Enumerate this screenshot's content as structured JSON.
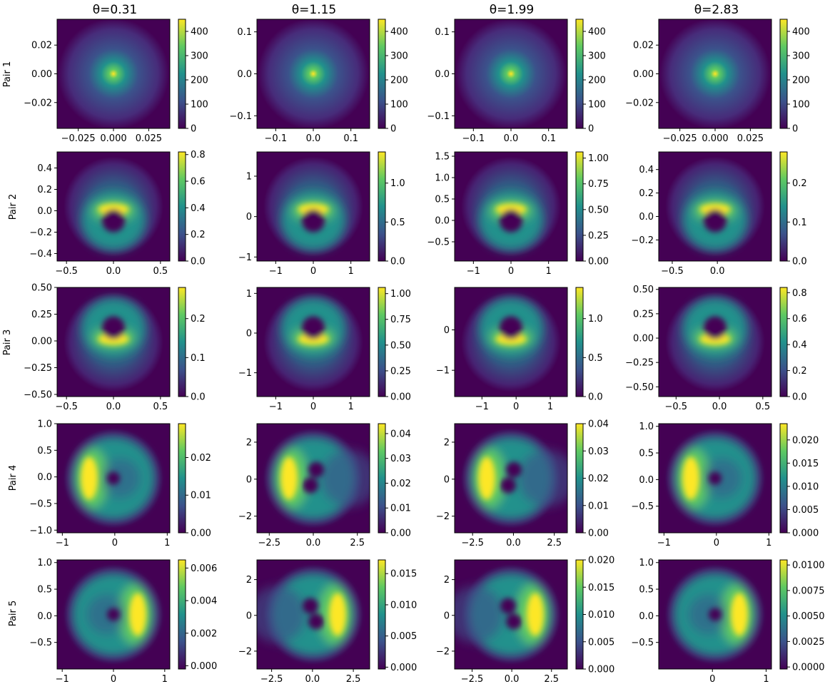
{
  "chart_data": {
    "type": "heatmap",
    "colormap": "viridis",
    "colormap_stops": [
      "#440154",
      "#3b528b",
      "#21918c",
      "#5ec962",
      "#fde725"
    ],
    "column_titles": [
      "θ=0.31",
      "θ=1.15",
      "θ=1.99",
      "θ=2.83"
    ],
    "row_labels": [
      "Pair 1",
      "Pair 2",
      "Pair 3",
      "Pair 4",
      "Pair 5"
    ],
    "panels": [
      [
        {
          "pattern": "peak",
          "xlim": [
            -0.04,
            0.04
          ],
          "ylim": [
            -0.038,
            0.038
          ],
          "xticks": [
            -0.025,
            0.0,
            0.025
          ],
          "xticklabels": [
            "−0.025",
            "0.000",
            "0.025"
          ],
          "yticks": [
            -0.02,
            0.0,
            0.02
          ],
          "yticklabels": [
            "−0.02",
            "0.00",
            "0.02"
          ],
          "clim": [
            0,
            450
          ],
          "cticks": [
            0,
            100,
            200,
            300,
            400
          ],
          "cticklabels": [
            "0",
            "100",
            "200",
            "300",
            "400"
          ]
        },
        {
          "pattern": "peak",
          "xlim": [
            -0.15,
            0.15
          ],
          "ylim": [
            -0.13,
            0.13
          ],
          "xticks": [
            -0.1,
            0.0,
            0.1
          ],
          "xticklabels": [
            "−0.1",
            "0.0",
            "0.1"
          ],
          "yticks": [
            -0.1,
            0.0,
            0.1
          ],
          "yticklabels": [
            "−0.1",
            "0.0",
            "0.1"
          ],
          "clim": [
            0,
            450
          ],
          "cticks": [
            0,
            100,
            200,
            300,
            400
          ],
          "cticklabels": [
            "0",
            "100",
            "200",
            "300",
            "400"
          ]
        },
        {
          "pattern": "peak",
          "xlim": [
            -0.15,
            0.15
          ],
          "ylim": [
            -0.13,
            0.13
          ],
          "xticks": [
            -0.1,
            0.0,
            0.1
          ],
          "xticklabels": [
            "−0.1",
            "0.0",
            "0.1"
          ],
          "yticks": [
            -0.1,
            0.0,
            0.1
          ],
          "yticklabels": [
            "−0.1",
            "0.0",
            "0.1"
          ],
          "clim": [
            0,
            450
          ],
          "cticks": [
            0,
            100,
            200,
            300,
            400
          ],
          "cticklabels": [
            "0",
            "100",
            "200",
            "300",
            "400"
          ]
        },
        {
          "pattern": "peak",
          "xlim": [
            -0.04,
            0.04
          ],
          "ylim": [
            -0.038,
            0.038
          ],
          "xticks": [
            -0.025,
            0.0,
            0.025
          ],
          "xticklabels": [
            "−0.025",
            "0.000",
            "0.025"
          ],
          "yticks": [
            -0.02,
            0.0,
            0.02
          ],
          "yticklabels": [
            "−0.02",
            "0.00",
            "0.02"
          ],
          "clim": [
            0,
            450
          ],
          "cticks": [
            0,
            100,
            200,
            300,
            400
          ],
          "cticklabels": [
            "0",
            "100",
            "200",
            "300",
            "400"
          ]
        }
      ],
      [
        {
          "pattern": "arc-up",
          "xlim": [
            -0.6,
            0.6
          ],
          "ylim": [
            -0.47,
            0.55
          ],
          "xticks": [
            -0.5,
            0.0,
            0.5
          ],
          "xticklabels": [
            "−0.5",
            "0.0",
            "0.5"
          ],
          "yticks": [
            -0.4,
            -0.2,
            0.0,
            0.2,
            0.4
          ],
          "yticklabels": [
            "−0.4",
            "−0.2",
            "0.0",
            "0.2",
            "0.4"
          ],
          "clim": [
            0,
            0.82
          ],
          "cticks": [
            0.0,
            0.2,
            0.4,
            0.6,
            0.8
          ],
          "cticklabels": [
            "0.0",
            "0.2",
            "0.4",
            "0.6",
            "0.8"
          ]
        },
        {
          "pattern": "arc-up",
          "xlim": [
            -1.5,
            1.5
          ],
          "ylim": [
            -1.1,
            1.6
          ],
          "xticks": [
            -1,
            0,
            1
          ],
          "xticklabels": [
            "−1",
            "0",
            "1"
          ],
          "yticks": [
            -1,
            0,
            1
          ],
          "yticklabels": [
            "−1",
            "0",
            "1"
          ],
          "clim": [
            0,
            1.4
          ],
          "cticks": [
            0.0,
            0.5,
            1.0
          ],
          "cticklabels": [
            "0.0",
            "0.5",
            "1.0"
          ]
        },
        {
          "pattern": "arc-up",
          "xlim": [
            -1.5,
            1.5
          ],
          "ylim": [
            -0.95,
            1.6
          ],
          "xticks": [
            -1,
            0,
            1
          ],
          "xticklabels": [
            "−1",
            "0",
            "1"
          ],
          "yticks": [
            -0.5,
            0.0,
            0.5,
            1.0,
            1.5
          ],
          "yticklabels": [
            "−0.5",
            "0.0",
            "0.5",
            "1.0",
            "1.5"
          ],
          "clim": [
            0,
            1.06
          ],
          "cticks": [
            0.0,
            0.25,
            0.5,
            0.75,
            1.0
          ],
          "cticklabels": [
            "0.00",
            "0.25",
            "0.50",
            "0.75",
            "1.00"
          ]
        },
        {
          "pattern": "arc-up",
          "xlim": [
            -0.65,
            0.6
          ],
          "ylim": [
            -0.38,
            0.55
          ],
          "xticks": [
            -0.5,
            0.0
          ],
          "xticklabels": [
            "−0.5",
            "0.0"
          ],
          "yticks": [
            -0.2,
            0.0,
            0.2,
            0.4
          ],
          "yticklabels": [
            "−0.2",
            "0.0",
            "0.2",
            "0.4"
          ],
          "clim": [
            0,
            0.28
          ],
          "cticks": [
            0.0,
            0.1,
            0.2
          ],
          "cticklabels": [
            "0.0",
            "0.1",
            "0.2"
          ]
        }
      ],
      [
        {
          "pattern": "arc-down",
          "xlim": [
            -0.6,
            0.6
          ],
          "ylim": [
            -0.52,
            0.5
          ],
          "xticks": [
            -0.5,
            0.0,
            0.5
          ],
          "xticklabels": [
            "−0.5",
            "0.0",
            "0.5"
          ],
          "yticks": [
            -0.5,
            -0.25,
            0.0,
            0.25,
            0.5
          ],
          "yticklabels": [
            "−0.50",
            "−0.25",
            "0.00",
            "0.25",
            "0.50"
          ],
          "clim": [
            0,
            0.28
          ],
          "cticks": [
            0.0,
            0.1,
            0.2
          ],
          "cticklabels": [
            "0.0",
            "0.1",
            "0.2"
          ]
        },
        {
          "pattern": "arc-down",
          "xlim": [
            -1.5,
            1.5
          ],
          "ylim": [
            -1.6,
            1.15
          ],
          "xticks": [
            -1,
            0,
            1
          ],
          "xticklabels": [
            "−1",
            "0",
            "1"
          ],
          "yticks": [
            -1,
            0,
            1
          ],
          "yticklabels": [
            "−1",
            "0",
            "1"
          ],
          "clim": [
            0,
            1.06
          ],
          "cticks": [
            0.0,
            0.25,
            0.5,
            0.75,
            1.0
          ],
          "cticklabels": [
            "0.00",
            "0.25",
            "0.50",
            "0.75",
            "1.00"
          ]
        },
        {
          "pattern": "arc-down",
          "xlim": [
            -1.8,
            1.5
          ],
          "ylim": [
            -1.65,
            1.05
          ],
          "xticks": [
            -1,
            0,
            1
          ],
          "xticklabels": [
            "−1",
            "0",
            "1"
          ],
          "yticks": [
            -1,
            0
          ],
          "yticklabels": [
            "−1",
            "0"
          ],
          "clim": [
            0,
            1.4
          ],
          "cticks": [
            0.0,
            0.5,
            1.0
          ],
          "cticklabels": [
            "0.0",
            "0.5",
            "1.0"
          ]
        },
        {
          "pattern": "arc-down",
          "xlim": [
            -0.7,
            0.6
          ],
          "ylim": [
            -0.6,
            0.52
          ],
          "xticks": [
            -0.5,
            0.0,
            0.5
          ],
          "xticklabels": [
            "−0.5",
            "0.0",
            "0.5"
          ],
          "yticks": [
            -0.5,
            -0.25,
            0.0,
            0.25,
            0.5
          ],
          "yticklabels": [
            "−0.50",
            "−0.25",
            "0.00",
            "0.25",
            "0.50"
          ],
          "clim": [
            0,
            0.84
          ],
          "cticks": [
            0.0,
            0.2,
            0.4,
            0.6,
            0.8
          ],
          "cticklabels": [
            "0.0",
            "0.2",
            "0.4",
            "0.6",
            "0.8"
          ]
        }
      ],
      [
        {
          "pattern": "crescent-left",
          "xlim": [
            -1.1,
            1.05
          ],
          "ylim": [
            -1.05,
            1.0
          ],
          "xticks": [
            -1,
            0,
            1
          ],
          "xticklabels": [
            "−1",
            "0",
            "1"
          ],
          "yticks": [
            -1.0,
            -0.5,
            0.0,
            0.5,
            1.0
          ],
          "yticklabels": [
            "−1.0",
            "−0.5",
            "0.0",
            "0.5",
            "1.0"
          ],
          "clim": [
            0,
            0.029
          ],
          "cticks": [
            0.0,
            0.01,
            0.02
          ],
          "cticklabels": [
            "0.00",
            "0.01",
            "0.02"
          ]
        },
        {
          "pattern": "crescent-left-split",
          "xlim": [
            -3.2,
            3.2
          ],
          "ylim": [
            -2.9,
            3.0
          ],
          "xticks": [
            -2.5,
            0.0,
            2.5
          ],
          "xticklabels": [
            "−2.5",
            "0.0",
            "2.5"
          ],
          "yticks": [
            -2,
            0,
            2
          ],
          "yticklabels": [
            "−2",
            "0",
            "2"
          ],
          "clim": [
            0,
            0.044
          ],
          "cticks": [
            0.0,
            0.01,
            0.02,
            0.03,
            0.04
          ],
          "cticklabels": [
            "0.00",
            "0.01",
            "0.02",
            "0.03",
            "0.04"
          ]
        },
        {
          "pattern": "crescent-left-split",
          "xlim": [
            -3.6,
            3.3
          ],
          "ylim": [
            -2.9,
            3.0
          ],
          "xticks": [
            -2.5,
            0.0,
            2.5
          ],
          "xticklabels": [
            "−2.5",
            "0.0",
            "2.5"
          ],
          "yticks": [
            -2,
            0,
            2
          ],
          "yticklabels": [
            "−2",
            "0",
            "2"
          ],
          "clim": [
            0,
            0.04
          ],
          "cticks": [
            0.0,
            0.01,
            0.02,
            0.03,
            0.04
          ],
          "cticklabels": [
            "0.00",
            "0.01",
            "0.02",
            "0.03",
            "0.04"
          ]
        },
        {
          "pattern": "crescent-left",
          "xlim": [
            -1.1,
            1.05
          ],
          "ylim": [
            -1.0,
            1.05
          ],
          "xticks": [
            -1,
            0,
            1
          ],
          "xticklabels": [
            "−1",
            "0",
            "1"
          ],
          "yticks": [
            -0.5,
            0.0,
            0.5,
            1.0
          ],
          "yticklabels": [
            "−0.5",
            "0.0",
            "0.5",
            "1.0"
          ],
          "clim": [
            0,
            0.0235
          ],
          "cticks": [
            0.0,
            0.005,
            0.01,
            0.015,
            0.02
          ],
          "cticklabels": [
            "0.000",
            "0.005",
            "0.010",
            "0.015",
            "0.020"
          ]
        }
      ],
      [
        {
          "pattern": "crescent-right",
          "xlim": [
            -1.1,
            1.1
          ],
          "ylim": [
            -1.0,
            1.05
          ],
          "xticks": [
            -1,
            0,
            1
          ],
          "xticklabels": [
            "−1",
            "0",
            "1"
          ],
          "yticks": [
            -0.5,
            0.0,
            0.5,
            1.0
          ],
          "yticklabels": [
            "−0.5",
            "0.0",
            "0.5",
            "1.0"
          ],
          "clim": [
            -0.0002,
            0.0065
          ],
          "cticks": [
            0.0,
            0.002,
            0.004,
            0.006
          ],
          "cticklabels": [
            "0.000",
            "0.002",
            "0.004",
            "0.006"
          ]
        },
        {
          "pattern": "crescent-right-split",
          "xlim": [
            -3.4,
            3.5
          ],
          "ylim": [
            -3.0,
            3.1
          ],
          "xticks": [
            -2.5,
            0.0,
            2.5
          ],
          "xticklabels": [
            "−2.5",
            "0.0",
            "2.5"
          ],
          "yticks": [
            -2,
            0,
            2
          ],
          "yticklabels": [
            "−2",
            "0",
            "2"
          ],
          "clim": [
            -0.0003,
            0.0172
          ],
          "cticks": [
            0.0,
            0.005,
            0.01,
            0.015
          ],
          "cticklabels": [
            "0.000",
            "0.005",
            "0.010",
            "0.015"
          ]
        },
        {
          "pattern": "crescent-right-split",
          "xlim": [
            -3.6,
            3.5
          ],
          "ylim": [
            -3.0,
            3.1
          ],
          "xticks": [
            -2.5,
            0.0,
            2.5
          ],
          "xticklabels": [
            "−2.5",
            "0.0",
            "2.5"
          ],
          "yticks": [
            -2,
            0,
            2
          ],
          "yticklabels": [
            "−2",
            "0",
            "2"
          ],
          "clim": [
            0,
            0.02
          ],
          "cticks": [
            0.0,
            0.005,
            0.01,
            0.015,
            0.02
          ],
          "cticklabels": [
            "0.000",
            "0.005",
            "0.010",
            "0.015",
            "0.020"
          ]
        },
        {
          "pattern": "crescent-right",
          "xlim": [
            -1.0,
            1.1
          ],
          "ylim": [
            -1.0,
            1.05
          ],
          "xticks": [
            0,
            1
          ],
          "xticklabels": [
            "0",
            "1"
          ],
          "yticks": [
            -0.5,
            0.0,
            0.5,
            1.0
          ],
          "yticklabels": [
            "−0.5",
            "0.0",
            "0.5",
            "1.0"
          ],
          "clim": [
            -0.0002,
            0.0105
          ],
          "cticks": [
            0.0,
            0.0025,
            0.005,
            0.0075,
            0.01
          ],
          "cticklabels": [
            "0.0000",
            "0.0025",
            "0.0050",
            "0.0075",
            "0.0100"
          ]
        }
      ]
    ]
  }
}
